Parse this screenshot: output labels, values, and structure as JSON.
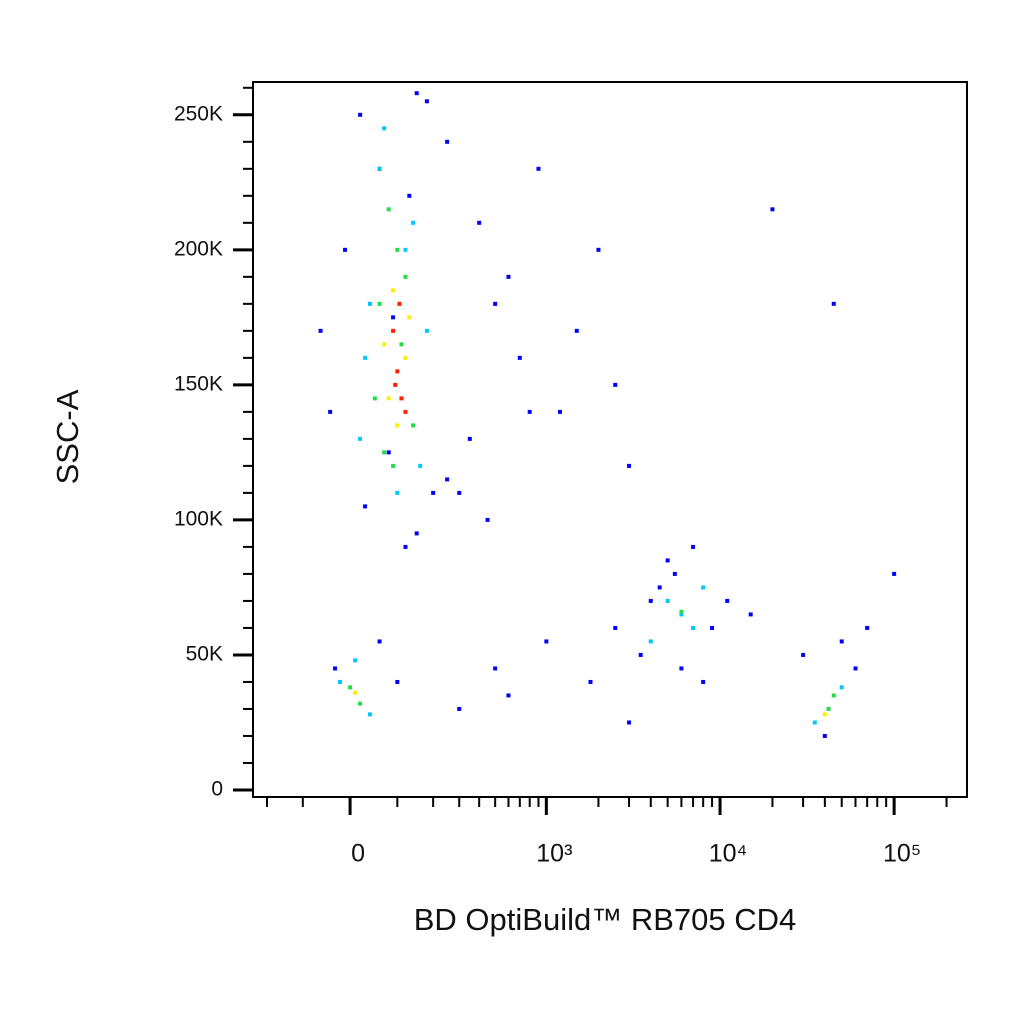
{
  "chart_data": {
    "type": "scatter",
    "x_label": "BD OptiBuild™ RB705 CD4",
    "y_label": "SSC-A",
    "xscale": "asinh",
    "xlim": [
      -250,
      262144
    ],
    "ylim": [
      -2600,
      262144
    ],
    "xticks": [
      0,
      {
        "value": 1000,
        "label": "10³"
      },
      {
        "value": 10000,
        "label": "10⁴"
      },
      {
        "value": 100000,
        "label": "10⁵"
      }
    ],
    "xminorticks": [
      -200,
      -100,
      100,
      200,
      300,
      400,
      500,
      600,
      700,
      800,
      900,
      2000,
      3000,
      4000,
      5000,
      6000,
      7000,
      8000,
      9000,
      20000,
      30000,
      40000,
      50000,
      60000,
      70000,
      80000,
      90000,
      200000
    ],
    "yticks": [
      0,
      {
        "value": 50000,
        "label": "50K"
      },
      {
        "value": 100000,
        "label": "100K"
      },
      {
        "value": 150000,
        "label": "150K"
      },
      {
        "value": 200000,
        "label": "200K"
      },
      {
        "value": 250000,
        "label": "250K"
      }
    ],
    "yminorticks": [
      10000,
      20000,
      30000,
      40000,
      60000,
      70000,
      80000,
      90000,
      110000,
      120000,
      130000,
      140000,
      160000,
      170000,
      180000,
      190000,
      210000,
      220000,
      230000,
      240000,
      260000
    ],
    "series": [
      {
        "color": "#0000ff",
        "x": [
          20,
          180,
          60,
          -10,
          250,
          400,
          600,
          900,
          1500,
          2500,
          350,
          700,
          1200,
          3000,
          500,
          300,
          800,
          2000,
          450,
          150,
          30,
          -40,
          120,
          5000,
          4000,
          7000,
          9000,
          3500,
          6000,
          11000,
          8000,
          -30,
          60,
          100,
          300,
          500,
          1000,
          40000,
          60000,
          30000,
          50000,
          70000,
          4500,
          5500,
          2500,
          15000,
          100000,
          45000,
          20000,
          250,
          150,
          80,
          -60,
          600,
          1800,
          3000,
          130,
          200,
          90
        ],
        "values": [
          250000,
          255000,
          230000,
          200000,
          240000,
          210000,
          190000,
          230000,
          170000,
          150000,
          130000,
          160000,
          140000,
          120000,
          180000,
          110000,
          140000,
          200000,
          100000,
          95000,
          105000,
          140000,
          90000,
          85000,
          70000,
          90000,
          60000,
          50000,
          45000,
          70000,
          40000,
          45000,
          55000,
          40000,
          30000,
          45000,
          55000,
          20000,
          45000,
          50000,
          55000,
          60000,
          75000,
          80000,
          60000,
          65000,
          80000,
          180000,
          215000,
          115000,
          258000,
          125000,
          170000,
          35000,
          40000,
          25000,
          220000,
          110000,
          175000
        ]
      },
      {
        "color": "#00c8ff",
        "x": [
          60,
          140,
          40,
          180,
          20,
          160,
          100,
          70,
          -20,
          40,
          10,
          5000,
          7000,
          4000,
          8000,
          6000,
          35000,
          50000,
          120,
          30
        ],
        "values": [
          230000,
          210000,
          180000,
          170000,
          130000,
          120000,
          110000,
          245000,
          40000,
          28000,
          48000,
          70000,
          60000,
          55000,
          75000,
          65000,
          25000,
          38000,
          200000,
          160000
        ]
      },
      {
        "color": "#22dd44",
        "x": [
          80,
          120,
          60,
          140,
          70,
          100,
          50,
          0,
          20,
          6000,
          42000,
          45000,
          110,
          90
        ],
        "values": [
          215000,
          190000,
          180000,
          135000,
          125000,
          200000,
          145000,
          38000,
          32000,
          66000,
          30000,
          35000,
          165000,
          120000
        ]
      },
      {
        "color": "#ffee00",
        "x": [
          90,
          120,
          70,
          100,
          10,
          40000,
          130,
          80
        ],
        "values": [
          185000,
          160000,
          165000,
          135000,
          36000,
          28000,
          175000,
          145000
        ]
      },
      {
        "color": "#ff2000",
        "x": [
          100,
          110,
          90,
          120,
          95,
          105
        ],
        "values": [
          155000,
          145000,
          170000,
          140000,
          150000,
          180000
        ]
      }
    ]
  }
}
